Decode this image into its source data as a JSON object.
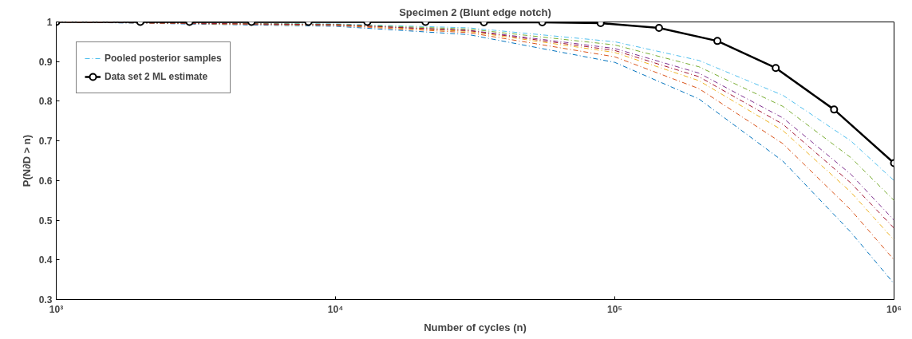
{
  "chart_data": {
    "type": "line",
    "title": "Specimen 2 (Blunt edge notch)",
    "xlabel": "Number of cycles (n)",
    "ylabel": "P(N∂D > n)",
    "log": "x",
    "xlim": [
      1000,
      1000000
    ],
    "xticks": [
      {
        "value": 1000,
        "label": "10³"
      },
      {
        "value": 10000,
        "label": "10⁴"
      },
      {
        "value": 100000,
        "label": "10⁵"
      },
      {
        "value": 1000000,
        "label": "10⁶"
      }
    ],
    "ylim": [
      0.3,
      1
    ],
    "yticks": [
      0.3,
      0.4,
      0.5,
      0.6,
      0.7,
      0.8,
      0.9,
      {
        "value": 1,
        "label": "1"
      }
    ],
    "grid": false,
    "legend": "top left",
    "series": [
      {
        "name": "Pooled posterior samples",
        "color": "#4dbeee",
        "line_style": "dashed",
        "marker": "none",
        "x": [
          1000,
          10000,
          30000,
          100000,
          200000,
          400000,
          700000,
          1000000
        ],
        "values": [
          1.0,
          0.995,
          0.985,
          0.95,
          0.903,
          0.815,
          0.7,
          0.6
        ]
      },
      {
        "color": "#0072bd",
        "line_style": "dashed",
        "marker": "none",
        "x": [
          1000,
          10000,
          30000,
          100000,
          200000,
          400000,
          700000,
          1000000
        ],
        "values": [
          1.0,
          0.989,
          0.968,
          0.898,
          0.806,
          0.649,
          0.47,
          0.34
        ]
      },
      {
        "color": "#d95319",
        "line_style": "dashed",
        "marker": "none",
        "x": [
          1000,
          10000,
          30000,
          100000,
          200000,
          400000,
          700000,
          1000000
        ],
        "values": [
          1.0,
          0.991,
          0.973,
          0.912,
          0.832,
          0.693,
          0.526,
          0.4
        ]
      },
      {
        "color": "#edb120",
        "line_style": "dashed",
        "marker": "none",
        "x": [
          1000,
          10000,
          30000,
          100000,
          200000,
          400000,
          700000,
          1000000
        ],
        "values": [
          1.0,
          0.992,
          0.976,
          0.923,
          0.852,
          0.726,
          0.571,
          0.45
        ]
      },
      {
        "color": "#7e2f8e",
        "line_style": "dashed",
        "marker": "none",
        "x": [
          1000,
          10000,
          30000,
          100000,
          200000,
          400000,
          700000,
          1000000
        ],
        "values": [
          1.0,
          0.993,
          0.979,
          0.933,
          0.871,
          0.758,
          0.616,
          0.5
        ]
      },
      {
        "color": "#77ac30",
        "line_style": "dashed",
        "marker": "none",
        "x": [
          1000,
          10000,
          30000,
          100000,
          200000,
          400000,
          700000,
          1000000
        ],
        "values": [
          1.0,
          0.994,
          0.982,
          0.942,
          0.887,
          0.787,
          0.658,
          0.55
        ]
      },
      {
        "color": "#a2142f",
        "line_style": "dashed",
        "marker": "none",
        "x": [
          1000,
          10000,
          30000,
          100000,
          200000,
          400000,
          700000,
          1000000
        ],
        "values": [
          1.0,
          0.993,
          0.978,
          0.928,
          0.862,
          0.742,
          0.594,
          0.48
        ]
      },
      {
        "name": "Data set 2 ML estimate",
        "color": "#000000",
        "line_style": "solid",
        "marker": "circle",
        "x": [
          1000,
          2000,
          3000,
          5000,
          8000,
          13000,
          21000,
          34000,
          55000,
          89000,
          144000,
          233000,
          377000,
          610000,
          1000000
        ],
        "values": [
          1,
          1,
          1,
          1,
          1,
          1,
          1,
          0.999,
          0.999,
          0.997,
          0.985,
          0.952,
          0.884,
          0.779,
          0.644
        ]
      }
    ]
  }
}
